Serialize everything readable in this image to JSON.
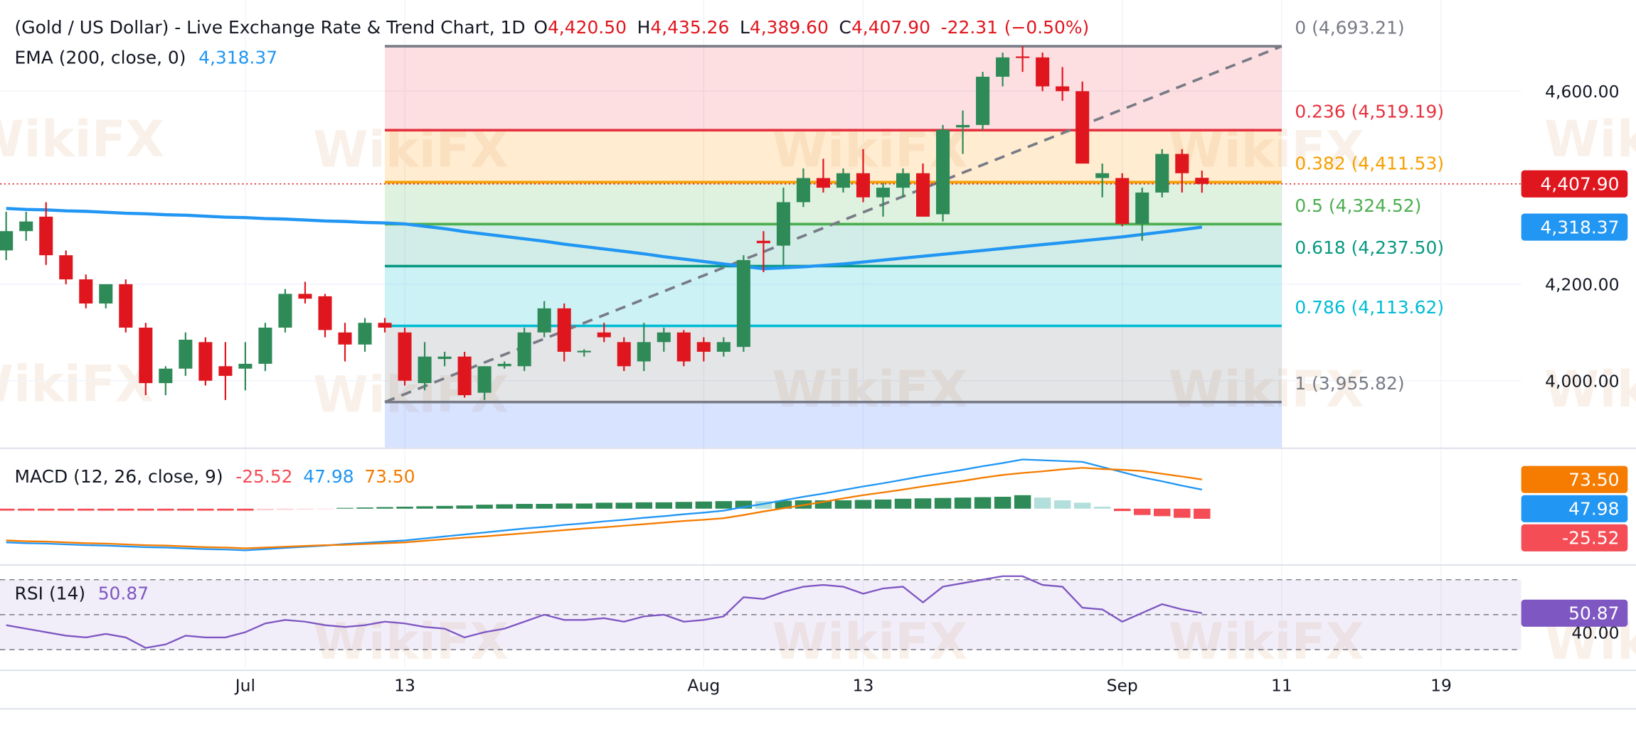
{
  "chart_data": {
    "type": "candlestick",
    "title": "(Gold / US Dollar) - Live Exchange Rate & Trend Chart, 1D",
    "ohlc_legend": [
      {
        "key": "O",
        "value": "4,420.50"
      },
      {
        "key": "H",
        "value": "4,435.26"
      },
      {
        "key": "L",
        "value": "4,389.60"
      },
      {
        "key": "C",
        "value": "4,407.90"
      }
    ],
    "change": "-22.31",
    "change_pct": "(−0.50%)",
    "x": [
      0,
      1,
      2,
      3,
      4,
      5,
      6,
      7,
      8,
      9,
      10,
      11,
      12,
      13,
      14,
      15,
      16,
      17,
      18,
      19,
      20,
      21,
      22,
      23,
      24,
      25,
      26,
      27,
      28,
      29,
      30,
      31,
      32,
      33,
      34,
      35,
      36,
      37,
      38,
      39,
      40,
      41,
      42,
      43,
      44,
      45,
      46,
      47,
      48,
      49,
      50,
      51,
      52,
      53,
      54,
      55,
      56,
      57,
      58,
      59,
      60
    ],
    "xlim": [
      -0.31,
      76.02
    ],
    "xticks": [
      {
        "value": 12,
        "label": "Jul"
      },
      {
        "value": 20,
        "label": "13"
      },
      {
        "value": 35,
        "label": "Aug"
      },
      {
        "value": 43,
        "label": "13"
      },
      {
        "value": 56,
        "label": "Sep"
      },
      {
        "value": 64,
        "label": "11"
      },
      {
        "value": 72,
        "label": "19"
      }
    ],
    "open": [
      4270,
      4310,
      4340,
      4260,
      4210,
      4160,
      4200,
      4110,
      3995,
      4025,
      4080,
      4030,
      4025,
      4035,
      4110,
      4180,
      4175,
      4100,
      4075,
      4120,
      4100,
      3995,
      4045,
      4050,
      3975,
      4030,
      4030,
      4100,
      4150,
      4060,
      4100,
      4080,
      4040,
      4080,
      4100,
      4080,
      4060,
      4070,
      4290,
      4280,
      4370,
      4420,
      4400,
      4430,
      4380,
      4400,
      4430,
      4345,
      4525,
      4530,
      4630,
      4672,
      4670,
      4610,
      4600,
      4420,
      4420,
      4325,
      4390,
      4470,
      4420.5
    ],
    "high": [
      4350,
      4350,
      4370,
      4270,
      4220,
      4200,
      4210,
      4120,
      4030,
      4100,
      4090,
      4080,
      4080,
      4120,
      4190,
      4205,
      4180,
      4120,
      4130,
      4130,
      4110,
      4080,
      4060,
      4060,
      4030,
      4040,
      4110,
      4165,
      4160,
      4065,
      4120,
      4090,
      4120,
      4110,
      4105,
      4090,
      4090,
      4260,
      4310,
      4400,
      4440,
      4460,
      4440,
      4480,
      4410,
      4440,
      4450,
      4530,
      4560,
      4640,
      4680,
      4693,
      4680,
      4650,
      4620,
      4450,
      4430,
      4400,
      4480,
      4480,
      4435.26
    ],
    "low": [
      4250,
      4290,
      4240,
      4200,
      4150,
      4150,
      4100,
      3970,
      3970,
      4010,
      3990,
      3960,
      3980,
      4020,
      4100,
      4160,
      4090,
      4040,
      4060,
      4100,
      3990,
      3980,
      4030,
      3965,
      3960,
      4025,
      4020,
      4090,
      4040,
      4050,
      4080,
      4020,
      4020,
      4060,
      4030,
      4040,
      4050,
      4060,
      4225,
      4240,
      4360,
      4390,
      4390,
      4370,
      4340,
      4380,
      4340,
      4330,
      4470,
      4520,
      4610,
      4640,
      4600,
      4580,
      4450,
      4380,
      4320,
      4290,
      4380,
      4390,
      4389.6
    ],
    "close": [
      4310,
      4330,
      4260,
      4210,
      4160,
      4200,
      4110,
      3995,
      4025,
      4085,
      4000,
      4010,
      4035,
      4110,
      4180,
      4170,
      4105,
      4075,
      4120,
      4110,
      4000,
      4050,
      4050,
      3970,
      4030,
      4035,
      4100,
      4150,
      4060,
      4062,
      4090,
      4030,
      4080,
      4100,
      4040,
      4060,
      4080,
      4250,
      4285,
      4370,
      4420,
      4400,
      4430,
      4380,
      4400,
      4430,
      4340,
      4520,
      4530,
      4630,
      4670,
      4670,
      4610,
      4600,
      4450,
      4430,
      4325,
      4390,
      4470,
      4430,
      4407.9
    ],
    "up_color": "#2e8b57",
    "down_color": "#e0161e",
    "ylim": [
      3860,
      4789
    ],
    "yticks": [
      {
        "value": 4000,
        "label": "4,000.00"
      },
      {
        "value": 4200,
        "label": "4,200.00"
      },
      {
        "value": 4600,
        "label": "4,600.00"
      }
    ],
    "grid": true,
    "ema": {
      "name": "EMA (200, close, 0)",
      "value_label": "4,318.37",
      "color": "#2196f3",
      "values": [
        4357,
        4355,
        4354,
        4352,
        4351,
        4349,
        4347,
        4346,
        4344,
        4343,
        4341,
        4339,
        4338,
        4336,
        4335,
        4333,
        4331,
        4330,
        4328,
        4327,
        4325,
        4320,
        4315,
        4309,
        4304,
        4299,
        4294,
        4289,
        4283,
        4278,
        4273,
        4268,
        4263,
        4257,
        4252,
        4247,
        4242,
        4237,
        4232,
        4234,
        4236,
        4239,
        4242,
        4246,
        4250,
        4254,
        4258,
        4262,
        4266,
        4270,
        4274,
        4278,
        4282,
        4286,
        4290,
        4294,
        4298,
        4303,
        4308,
        4313,
        4318.37
      ]
    },
    "fib": {
      "x_range": [
        19,
        64
      ],
      "trend_color": "#787b86",
      "levels": [
        {
          "price": 4693.21,
          "label": "0 (4,693.21)",
          "color": "#787b86",
          "fill": "rgba(242,54,69,0.16)"
        },
        {
          "price": 4519.19,
          "label": "0.236 (4,519.19)",
          "color": "#e5323f",
          "fill": "rgba(255,152,0,0.18)"
        },
        {
          "price": 4411.53,
          "label": "0.382 (4,411.53)",
          "color": "#f5a000",
          "fill": "rgba(76,175,80,0.18)"
        },
        {
          "price": 4324.52,
          "label": "0.5 (4,324.52)",
          "color": "#4caf50",
          "fill": "rgba(8,153,129,0.18)"
        },
        {
          "price": 4237.5,
          "label": "0.618 (4,237.50)",
          "color": "#089981",
          "fill": "rgba(0,188,212,0.2)"
        },
        {
          "price": 4113.62,
          "label": "0.786 (4,113.62)",
          "color": "#00bcd4",
          "fill": "rgba(120,123,134,0.2)"
        },
        {
          "price": 3955.82,
          "label": "1 (3,955.82)",
          "color": "#787b86",
          "fill": "rgba(41,98,255,0.18)"
        }
      ]
    },
    "macd": {
      "name": "MACD (12, 26, close, 9)",
      "ylim": [
        -142,
        147
      ],
      "histogram": {
        "label": "-25.52",
        "colors": [
          "#2e8b57",
          "#b2dfdb",
          "#f44d56",
          "#ffcdd2"
        ],
        "values": [
          -5,
          -5,
          -5,
          -5,
          -5,
          -5,
          -5,
          -5,
          -5,
          -5,
          -5,
          -5,
          -5,
          -4,
          -3,
          -2,
          -1,
          2,
          3,
          4,
          5,
          6,
          7,
          8,
          10,
          11,
          12,
          12,
          13,
          13,
          15,
          15,
          16,
          16,
          17,
          18,
          19,
          20,
          19,
          20,
          21,
          21,
          21,
          22,
          23,
          25,
          26,
          27,
          28,
          29,
          30,
          34,
          28,
          21,
          15,
          5,
          -6,
          -16,
          -19,
          -23,
          -25.52
        ]
      },
      "macd": {
        "label": "47.98",
        "color": "#2196f3",
        "values": [
          -85,
          -87,
          -88,
          -90,
          -92,
          -93,
          -95,
          -97,
          -98,
          -100,
          -102,
          -103,
          -105,
          -102,
          -99,
          -96,
          -93,
          -89,
          -86,
          -83,
          -80,
          -75,
          -70,
          -65,
          -60,
          -55,
          -50,
          -46,
          -41,
          -37,
          -32,
          -28,
          -23,
          -19,
          -14,
          -10,
          -5,
          4,
          12,
          21,
          30,
          38,
          47,
          56,
          64,
          73,
          82,
          90,
          98,
          107,
          115,
          124,
          122,
          120,
          118,
          105,
          92,
          79,
          69,
          58,
          47.98
        ]
      },
      "signal": {
        "label": "73.50",
        "color": "#f57c00",
        "values": [
          -80,
          -82,
          -83,
          -85,
          -87,
          -88,
          -90,
          -92,
          -93,
          -95,
          -97,
          -98,
          -100,
          -98,
          -96,
          -94,
          -92,
          -91,
          -89,
          -87,
          -85,
          -81,
          -77,
          -73,
          -70,
          -66,
          -62,
          -58,
          -54,
          -50,
          -47,
          -43,
          -39,
          -35,
          -31,
          -28,
          -24,
          -16,
          -7,
          1,
          9,
          17,
          26,
          34,
          41,
          48,
          56,
          63,
          70,
          78,
          85,
          90,
          94,
          99,
          103,
          100,
          98,
          95,
          88,
          81,
          73.5
        ]
      }
    },
    "rsi": {
      "name": "RSI (14)",
      "value_label": "50.87",
      "color": "#7e57c2",
      "ylim": [
        20,
        76.6
      ],
      "yticks": [
        {
          "value": 40,
          "label": "40.00"
        }
      ],
      "levels": [
        70,
        50,
        30
      ],
      "band": [
        30,
        70
      ],
      "band_color": "rgba(126,87,194,0.1)",
      "values": [
        44,
        42,
        40,
        38,
        37,
        39,
        37,
        31,
        33,
        38,
        37,
        37,
        40,
        45,
        47,
        46,
        44,
        43,
        44,
        46,
        45,
        43,
        42,
        37,
        40,
        42,
        46,
        50,
        47,
        47,
        48,
        46,
        49,
        50,
        46,
        47,
        49,
        60,
        59,
        63,
        66,
        67,
        66,
        62,
        65,
        66,
        57,
        66,
        68,
        70,
        72,
        72,
        67,
        66,
        54,
        53,
        46,
        51,
        56,
        53,
        50.87
      ]
    },
    "watermark": "WikiFX"
  }
}
